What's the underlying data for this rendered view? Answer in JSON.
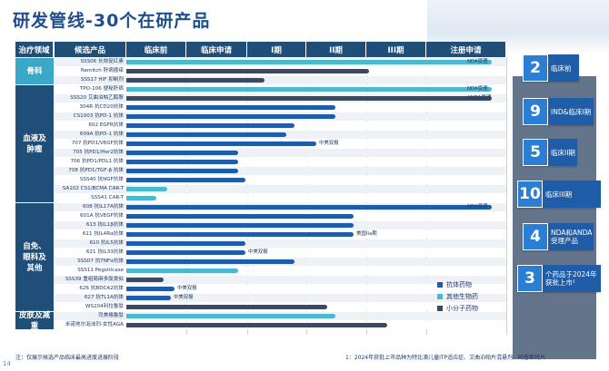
{
  "title": "研发管线-30个在研产品",
  "headers": [
    "治疗领域",
    "候选产品",
    "临床前",
    "临床申请",
    "I期",
    "II期",
    "III期",
    "注册申请"
  ],
  "areas": [
    {
      "label": "骨科"
    },
    {
      "label": "血液及\n肿瘤"
    },
    {
      "label": "自免、\n眼科及\n其他"
    },
    {
      "label": "皮肤及减重"
    }
  ],
  "rows": [
    {
      "name": "SSS06 长效促红素",
      "color": "c2",
      "stage": 0.98,
      "note": "NDA受理"
    },
    {
      "name": "Remitch 肝病瘙痒",
      "color": "c3",
      "stage": 0.65,
      "note": ""
    },
    {
      "name": "SSS17 HIF 抑制剂",
      "color": "c3",
      "stage": 0.37,
      "note": ""
    },
    {
      "name": "TPO-106 便秘肝病",
      "color": "c2",
      "stage": 0.98,
      "note": "NDA受理"
    },
    {
      "name": "SSS20 艾曲泊帕乙醇胺",
      "color": "c3",
      "stage": 0.98,
      "note": "ANDA受理"
    },
    {
      "name": "304R 抗CD20抗体",
      "color": "c1",
      "stage": 0.56,
      "note": ""
    },
    {
      "name": "CS1003 抗PD-1 抗体",
      "color": "c1",
      "stage": 0.56,
      "note": ""
    },
    {
      "name": "602 EGFR抗体",
      "color": "c1",
      "stage": 0.45,
      "note": ""
    },
    {
      "name": "609A 抗PD-1 抗体",
      "color": "c1",
      "stage": 0.43,
      "note": ""
    },
    {
      "name": "707 抗PD1/VEGF抗体",
      "color": "c1",
      "stage": 0.51,
      "note": "中美双报"
    },
    {
      "name": "705 抗PD1/Her2抗体",
      "color": "c1",
      "stage": 0.3,
      "note": ""
    },
    {
      "name": "706 抗PD1/PDL1 抗体",
      "color": "c1",
      "stage": 0.3,
      "note": ""
    },
    {
      "name": "708 抗PD1/TGF-β 抗体",
      "color": "c1",
      "stage": 0.3,
      "note": ""
    },
    {
      "name": "SSS40 抗NGF抗体",
      "color": "c1",
      "stage": 0.32,
      "note": ""
    },
    {
      "name": "SA102 CS1/BCMA CAR-T",
      "color": "c2",
      "stage": 0.11,
      "note": ""
    },
    {
      "name": "SSS41 CAR-T",
      "color": "c2",
      "stage": 0.08,
      "note": ""
    },
    {
      "name": "608 抗IL17A抗体",
      "color": "c1",
      "stage": 0.98,
      "note": "NDA受理"
    },
    {
      "name": "601A 抗VEGF抗体",
      "color": "c1",
      "stage": 0.61,
      "note": ""
    },
    {
      "name": "613 抗IL1β抗体",
      "color": "c1",
      "stage": 0.61,
      "note": ""
    },
    {
      "name": "611 抗IL4Rα抗体",
      "color": "c1",
      "stage": 0.61,
      "note": "美国IIa期"
    },
    {
      "name": "610 抗IL5抗体",
      "color": "c1",
      "stage": 0.32,
      "note": ""
    },
    {
      "name": "621 抗IL33抗体",
      "color": "c1",
      "stage": 0.32,
      "note": "中美双报"
    },
    {
      "name": "SSS07 抗TNFα抗体",
      "color": "c1",
      "stage": 0.45,
      "note": ""
    },
    {
      "name": "SSS11 Pegsiticase",
      "color": "c2",
      "stage": 0.3,
      "note": ""
    },
    {
      "name": "SSS39 重组局麻多肽类似",
      "color": "c3",
      "stage": 0.1,
      "note": ""
    },
    {
      "name": "626 抗BDCA2抗体",
      "color": "c1",
      "stage": 0.13,
      "note": "中美双报"
    },
    {
      "name": "627 抗TL1A抗体",
      "color": "c1",
      "stage": 0.12,
      "note": "中美双报"
    },
    {
      "name": "WS204利拉鲁肽",
      "color": "c3",
      "stage": 0.54,
      "note": ""
    },
    {
      "name": "司美格鲁肽",
      "color": "c2",
      "stage": 0.56,
      "note": ""
    },
    {
      "name": "米诺地尔泡沫剂-女性AGA",
      "color": "c3",
      "stage": 0.7,
      "note": ""
    }
  ],
  "legend": [
    {
      "label": "抗体药物",
      "color": "#1f5da8"
    },
    {
      "label": "其他生物药",
      "color": "#4ab8cf"
    },
    {
      "label": "小分子药物",
      "color": "#3d4a5e"
    }
  ],
  "cards": [
    {
      "num": "2",
      "label": "临床前"
    },
    {
      "num": "9",
      "label": "IND&临床I期"
    },
    {
      "num": "5",
      "label": "临床II期"
    },
    {
      "num": "10",
      "label": "临床III期"
    },
    {
      "num": "4",
      "label": "NDA和ANDA\n受理产品"
    },
    {
      "num": "3",
      "label": "个药品于2024年\n获批上市¹"
    }
  ],
  "footnote_left": "注：仅展示候选产品临床最高进度进展阶段",
  "footnote_right": "1：2024年获批上市品种为特比澳儿童ITP适应症、艾曲泊帕片混悬剂、阿普斯特片",
  "page": "14"
}
